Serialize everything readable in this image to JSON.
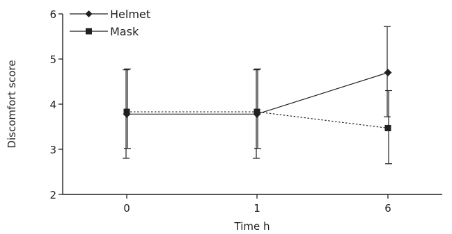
{
  "chart_data": {
    "type": "line",
    "title": "",
    "xlabel": "Time h",
    "ylabel": "Discomfort score",
    "categories": [
      "0",
      "1",
      "6"
    ],
    "ylim": [
      2,
      6
    ],
    "yticks": [
      "2",
      "3",
      "4",
      "5",
      "6"
    ],
    "grid": false,
    "legend_position": "top-left",
    "series": [
      {
        "name": "Helmet",
        "marker": "diamond",
        "line_style": "solid",
        "values": [
          3.78,
          3.78,
          4.7
        ],
        "error_low": [
          2.8,
          2.8,
          3.72
        ],
        "error_high": [
          4.76,
          4.76,
          5.72
        ]
      },
      {
        "name": "Mask",
        "marker": "square",
        "line_style": "dotted",
        "values": [
          3.83,
          3.83,
          3.47
        ],
        "error_low": [
          3.02,
          3.02,
          2.68
        ],
        "error_high": [
          4.78,
          4.78,
          4.3
        ]
      }
    ],
    "colors": {
      "ink": "#231f20"
    }
  }
}
